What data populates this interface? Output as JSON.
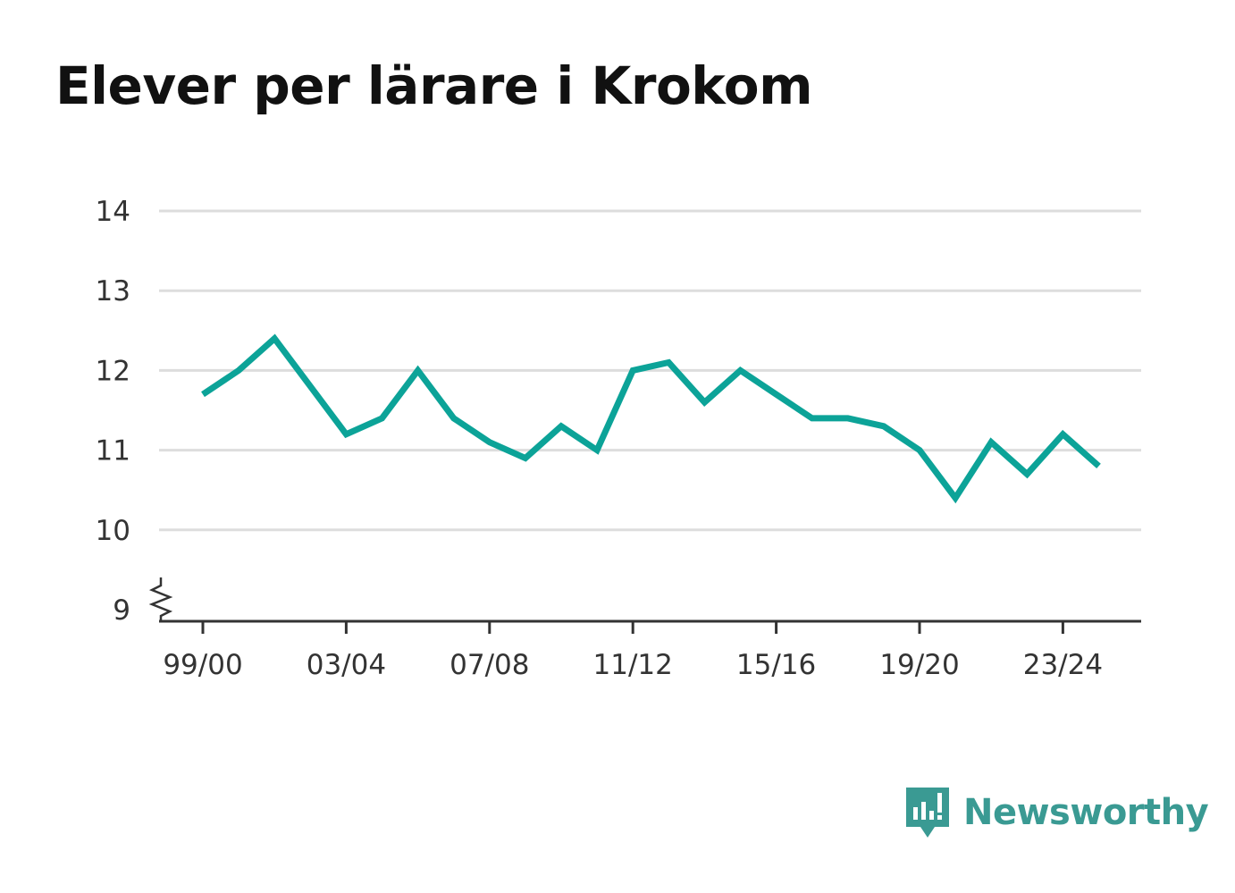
{
  "title": "Elever per lärare i Krokom",
  "chart_data": {
    "type": "line",
    "title": "Elever per lärare i Krokom",
    "xlabel": "",
    "ylabel": "",
    "ylim": [
      9,
      14
    ],
    "y_axis_break": true,
    "yticks": [
      "9",
      "10",
      "11",
      "12",
      "13",
      "14"
    ],
    "xticks": [
      "99/00",
      "03/04",
      "07/08",
      "11/12",
      "15/16",
      "19/20",
      "23/24"
    ],
    "x": [
      "99/00",
      "00/01",
      "01/02",
      "02/03",
      "03/04",
      "04/05",
      "05/06",
      "06/07",
      "07/08",
      "08/09",
      "09/10",
      "10/11",
      "11/12",
      "12/13",
      "13/14",
      "14/15",
      "15/16",
      "16/17",
      "17/18",
      "18/19",
      "19/20",
      "20/21",
      "21/22",
      "22/23",
      "23/24",
      "24/25"
    ],
    "series": [
      {
        "color": "#0ca398",
        "values": [
          11.7,
          12.0,
          12.4,
          11.8,
          11.2,
          11.4,
          12.0,
          11.4,
          11.1,
          10.9,
          11.3,
          11.0,
          12.0,
          12.1,
          11.6,
          12.0,
          11.7,
          11.4,
          11.4,
          11.3,
          11.0,
          10.4,
          11.1,
          10.7,
          11.2,
          10.8
        ]
      }
    ],
    "grid": true,
    "legend": "none"
  },
  "brand": {
    "name": "Newsworthy",
    "icon": "newsworthy-logo-icon",
    "color": "#3a9a93"
  }
}
